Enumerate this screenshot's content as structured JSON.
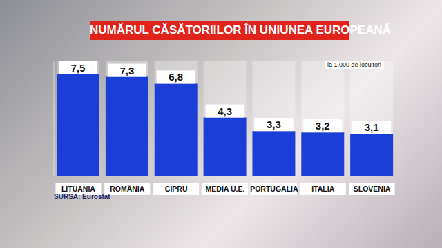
{
  "chart_data": {
    "type": "bar",
    "title": "NUMĂRUL CĂSĂTORIILOR ÎN UNIUNEA EUROPEANĂ",
    "subtitle": "la 1.000 de locuitori",
    "source": "SURSA: Eurostat",
    "categories": [
      "LITUANIA",
      "ROMÂNIA",
      "CIPRU",
      "MEDIA U.E.",
      "PORTUGALIA",
      "ITALIA",
      "SLOVENIA"
    ],
    "values": [
      7.5,
      7.3,
      6.8,
      4.3,
      3.3,
      3.2,
      3.1
    ],
    "value_labels": [
      "7,5",
      "7,3",
      "6,8",
      "4,3",
      "3,3",
      "3,2",
      "3,1"
    ],
    "color": "#1b3fd6",
    "ylim": [
      0,
      8.5
    ],
    "yticks": [],
    "data_labels": true,
    "tick_labels": "x",
    "grid": false
  }
}
